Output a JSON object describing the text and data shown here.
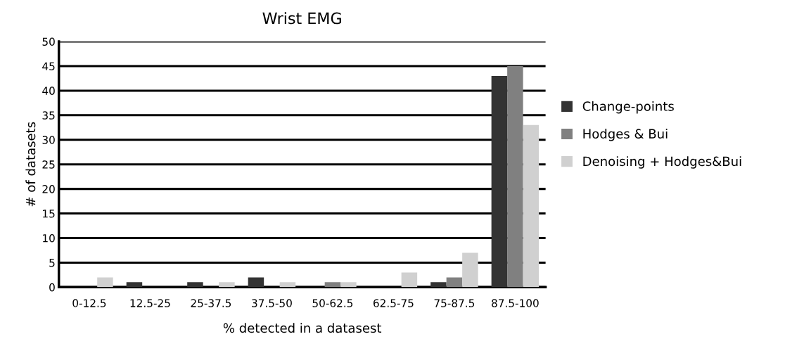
{
  "chart_data": {
    "type": "bar",
    "title": "Wrist EMG",
    "xlabel": "% detected in a datasest",
    "ylabel": "# of datasets",
    "categories": [
      "0-12.5",
      "12.5-25",
      "25-37.5",
      "37.5-50",
      "50-62.5",
      "62.5-75",
      "75-87.5",
      "87.5-100"
    ],
    "series": [
      {
        "name": "Change-points",
        "color": "#333333",
        "values": [
          0,
          1,
          1,
          2,
          0,
          0,
          1,
          43
        ]
      },
      {
        "name": "Hodges & Bui",
        "color": "#808080",
        "values": [
          0,
          0,
          0,
          0,
          1,
          0,
          2,
          45
        ]
      },
      {
        "name": "Denoising + Hodges&Bui",
        "color": "#d0d0d0",
        "values": [
          2,
          0,
          1,
          1,
          1,
          3,
          7,
          33
        ]
      }
    ],
    "ylim": [
      0,
      50
    ],
    "yticks": [
      0,
      5,
      10,
      15,
      20,
      25,
      30,
      35,
      40,
      45,
      50
    ],
    "grid": "y",
    "legend": "right"
  }
}
